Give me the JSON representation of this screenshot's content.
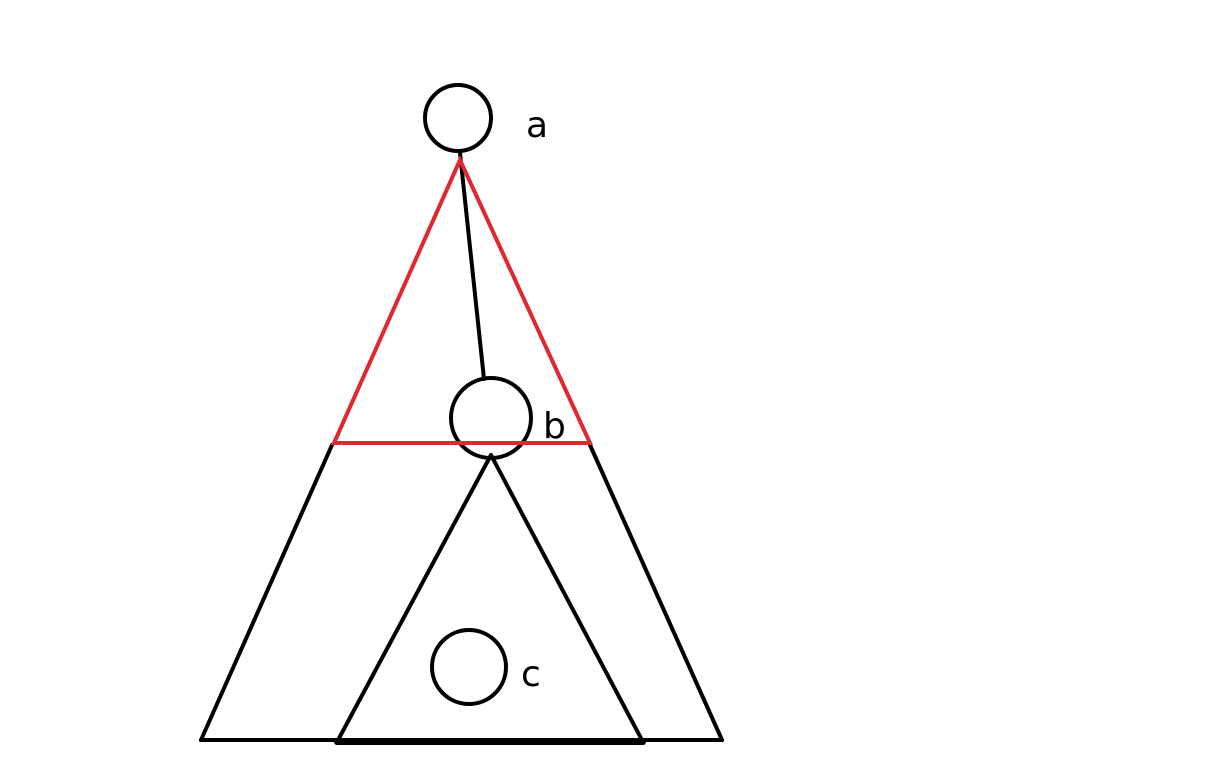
{
  "nodes": {
    "a": {
      "label": "a"
    },
    "b": {
      "label": "b"
    },
    "c": {
      "label": "c"
    }
  },
  "colors": {
    "stroke": "#000000",
    "highlight": "#e0282e",
    "background": "#ffffff"
  }
}
